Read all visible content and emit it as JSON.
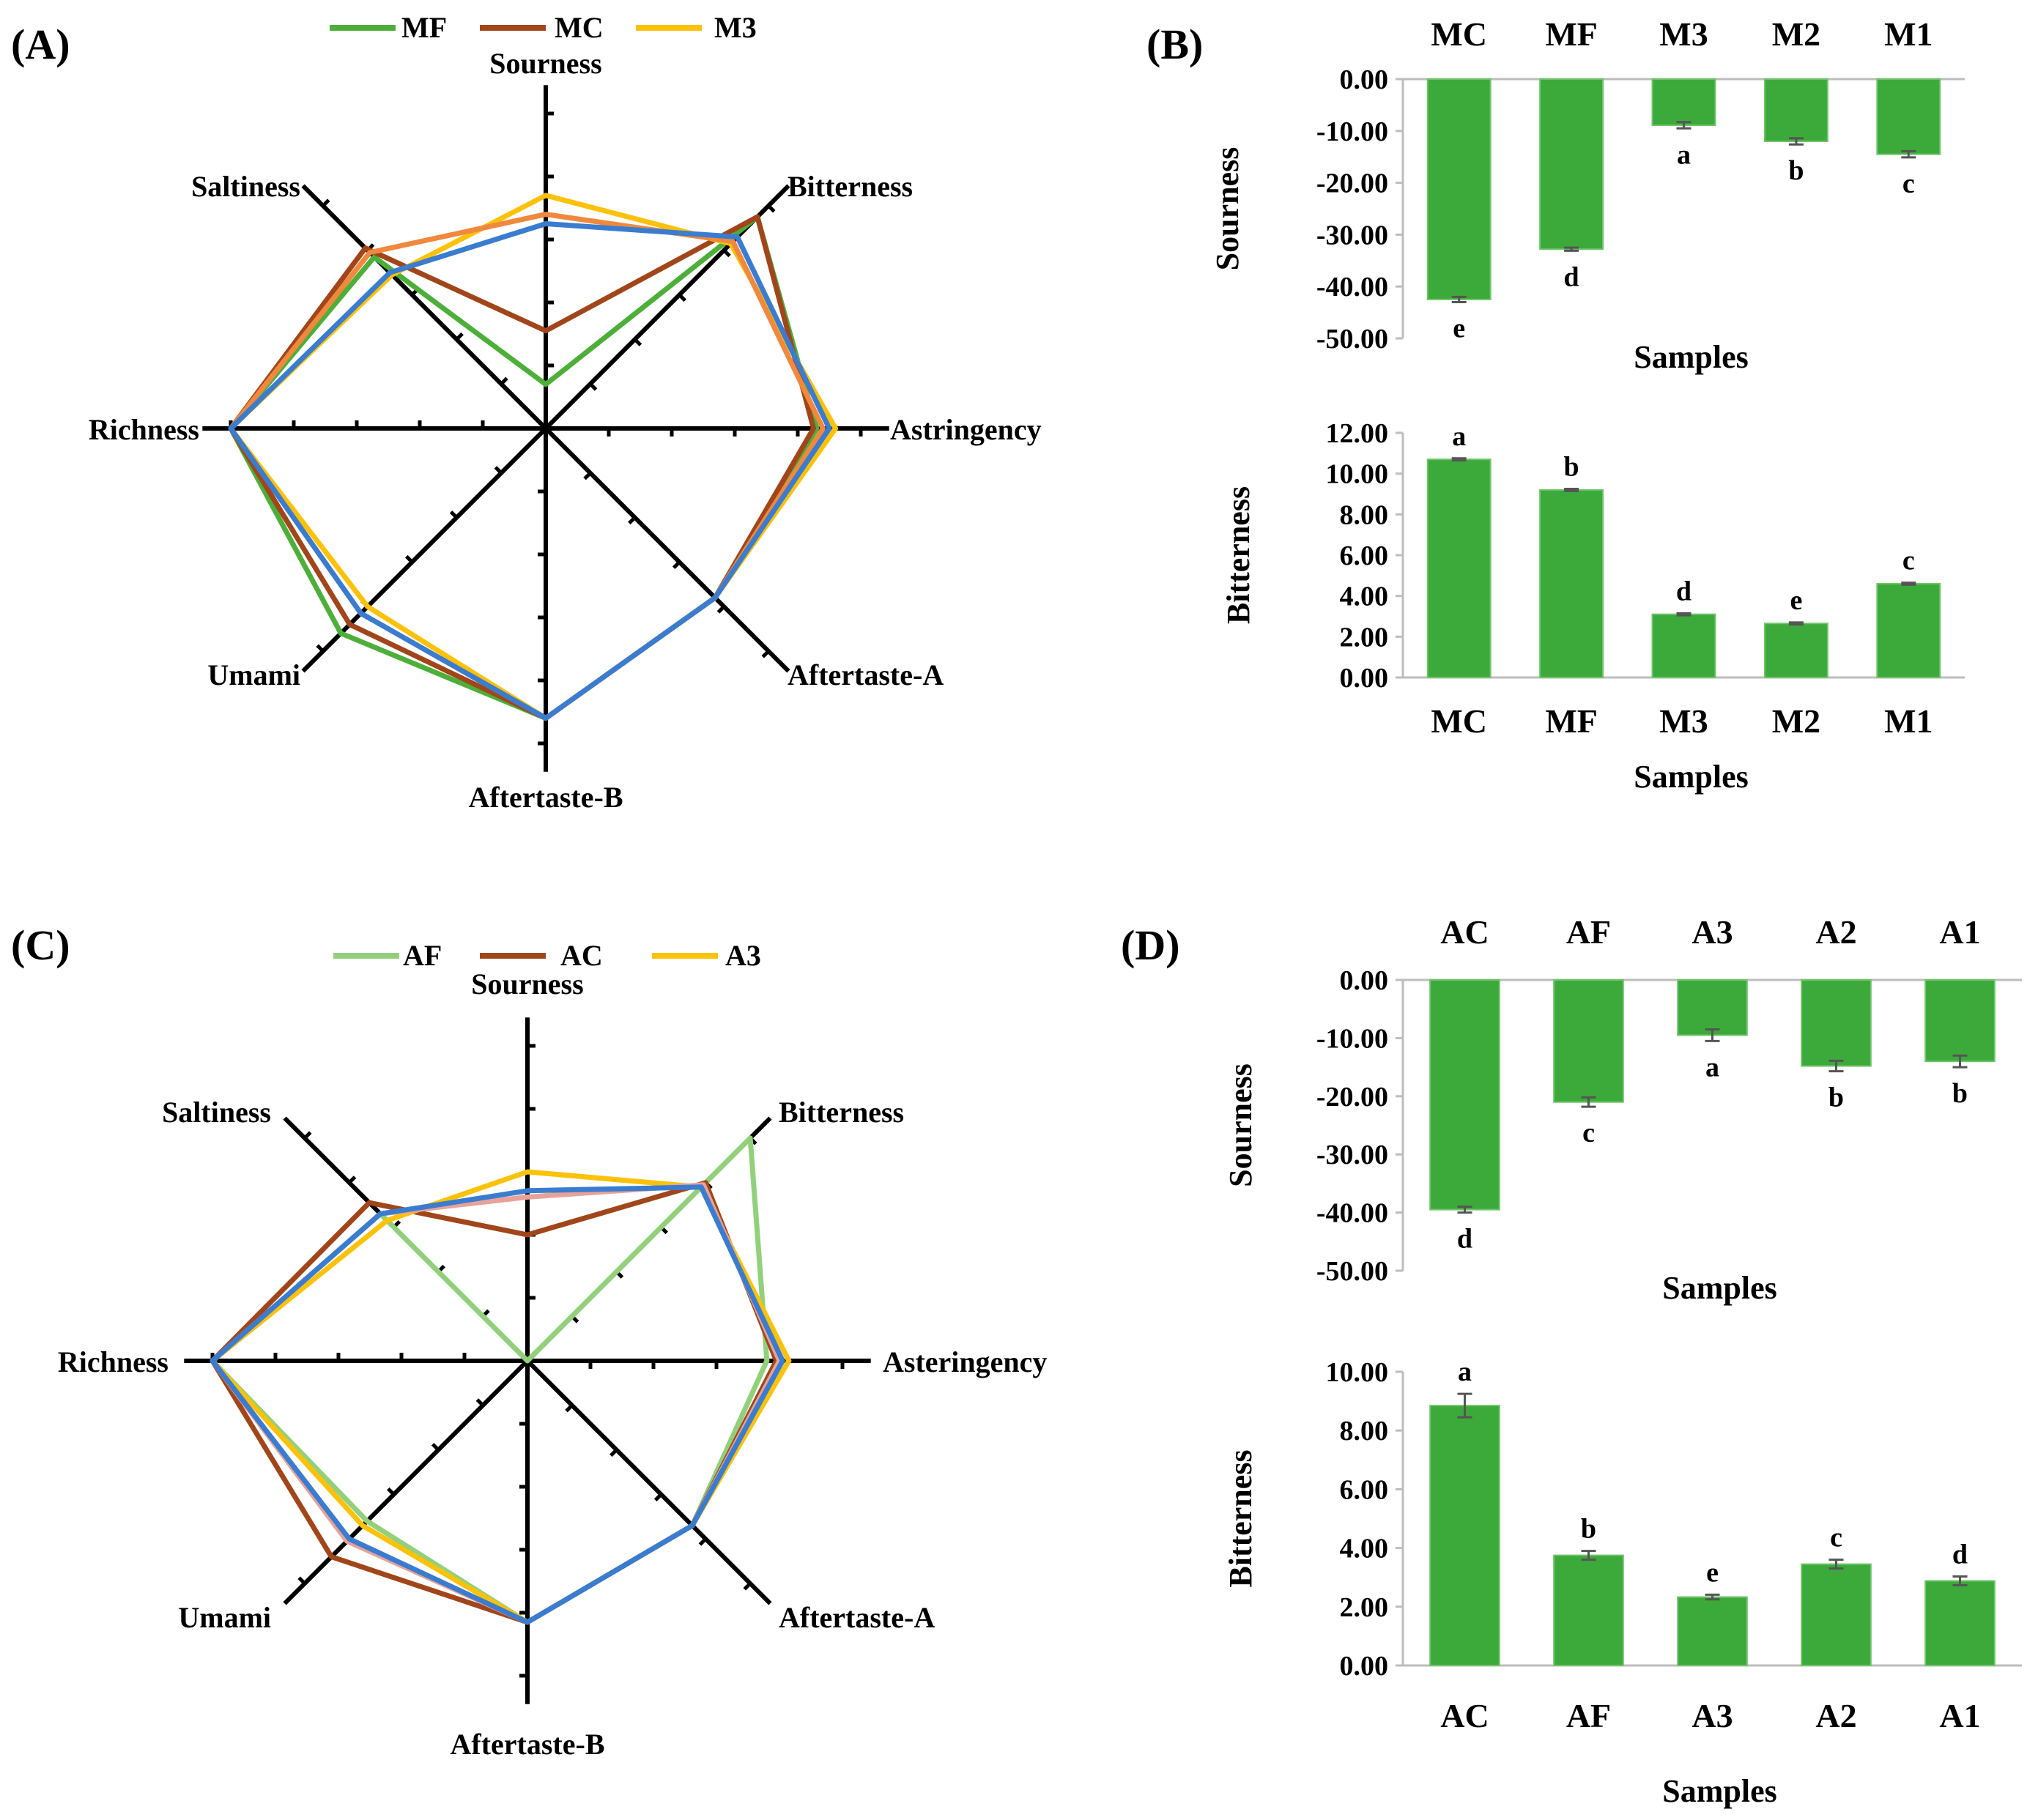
{
  "figure": {
    "panels": [
      "(A)",
      "(B)",
      "(C)",
      "(D)"
    ]
  },
  "colors": {
    "green_line": "#4daf3a",
    "brown_line": "#a0461a",
    "yellow_line": "#fcc20a",
    "orange_line": "#f0883e",
    "blue_line": "#3a7ccf",
    "light_green_line": "#92d07c",
    "pink_line": "#e7a29a",
    "bar_fill": "#3caa3a"
  },
  "chart_data": [
    {
      "panel": "(A)",
      "type": "radar",
      "axes": [
        "Sourness",
        "Bitterness",
        "Astringency",
        "Aftertaste-A",
        "Aftertaste-B",
        "Umami",
        "Richness",
        "Saltiness"
      ],
      "r_range": [
        0,
        1
      ],
      "legend": {
        "placement": "top",
        "entries": [
          {
            "name": "MF",
            "color": "#4daf3a"
          },
          {
            "name": "MC",
            "color": "#a0461a"
          },
          {
            "name": "M3",
            "color": "#fcc20a"
          }
        ]
      },
      "series": [
        {
          "name": "MF",
          "color": "#4daf3a",
          "values": [
            0.14,
            0.95,
            0.86,
            0.76,
            0.92,
            0.92,
            1.0,
            0.77
          ]
        },
        {
          "name": "MC",
          "color": "#a0461a",
          "values": [
            0.31,
            0.95,
            0.85,
            0.76,
            0.92,
            0.88,
            1.0,
            0.81
          ]
        },
        {
          "name": "M3",
          "color": "#fcc20a",
          "values": [
            0.74,
            0.83,
            0.92,
            0.76,
            0.92,
            0.8,
            1.0,
            0.69
          ]
        },
        {
          "color": "#f0883e",
          "values": [
            0.68,
            0.84,
            0.88,
            0.76,
            0.92,
            0.83,
            1.0,
            0.79
          ]
        },
        {
          "color": "#3a7ccf",
          "values": [
            0.65,
            0.86,
            0.9,
            0.76,
            0.92,
            0.83,
            1.0,
            0.7
          ]
        }
      ]
    },
    {
      "panel": "(B)",
      "type": "bar",
      "categories": [
        "MC",
        "MF",
        "M3",
        "M2",
        "M1"
      ],
      "values": [
        -42.5,
        -32.8,
        -8.9,
        -12.0,
        -14.5
      ],
      "errors": [
        0.5,
        0.3,
        0.6,
        0.6,
        0.6
      ],
      "significance": [
        "e",
        "d",
        "a",
        "b",
        "c"
      ],
      "ylabel": "Sourness",
      "xlabel": "Samples",
      "ylim": [
        -50,
        0
      ],
      "yticks": [
        "0.00",
        "-10.00",
        "-20.00",
        "-30.00",
        "-40.00",
        "-50.00"
      ],
      "category_axis": "top"
    },
    {
      "panel": "(B)",
      "type": "bar",
      "categories": [
        "MC",
        "MF",
        "M3",
        "M2",
        "M1"
      ],
      "values": [
        10.7,
        9.2,
        3.1,
        2.65,
        4.6
      ],
      "errors": [
        0.05,
        0.05,
        0.05,
        0.05,
        0.05
      ],
      "significance": [
        "a",
        "b",
        "d",
        "e",
        "c"
      ],
      "ylabel": "Bitterness",
      "xlabel": "Samples",
      "ylim": [
        0,
        12
      ],
      "yticks": [
        "0.00",
        "2.00",
        "4.00",
        "6.00",
        "8.00",
        "10.00",
        "12.00"
      ],
      "category_axis": "bottom"
    },
    {
      "panel": "(C)",
      "type": "radar",
      "axes": [
        "Sourness",
        "Bitterness",
        "Asteringency",
        "Aftertaste-A",
        "Aftertaste-B",
        "Umami",
        "Richness",
        "Saltiness"
      ],
      "r_range": [
        0,
        1
      ],
      "legend": {
        "placement": "top",
        "entries": [
          {
            "name": "AF",
            "color": "#92d07c"
          },
          {
            "name": "AC",
            "color": "#a0461a"
          },
          {
            "name": "A3",
            "color": "#fcc20a"
          }
        ]
      },
      "series": [
        {
          "name": "AF",
          "color": "#92d07c",
          "values": [
            0.0,
            1.0,
            0.76,
            0.74,
            0.83,
            0.72,
            1.0,
            0.66
          ]
        },
        {
          "name": "AC",
          "color": "#a0461a",
          "values": [
            0.4,
            0.8,
            0.79,
            0.74,
            0.83,
            0.88,
            1.0,
            0.71
          ]
        },
        {
          "name": "A3",
          "color": "#fcc20a",
          "values": [
            0.6,
            0.78,
            0.83,
            0.74,
            0.83,
            0.74,
            1.0,
            0.63
          ]
        },
        {
          "color": "#e7a29a",
          "values": [
            0.52,
            0.79,
            0.8,
            0.74,
            0.83,
            0.81,
            1.0,
            0.66
          ]
        },
        {
          "color": "#3a7ccf",
          "values": [
            0.54,
            0.78,
            0.81,
            0.74,
            0.83,
            0.8,
            1.0,
            0.66
          ]
        }
      ]
    },
    {
      "panel": "(D)",
      "type": "bar",
      "categories": [
        "AC",
        "AF",
        "A3",
        "A2",
        "A1"
      ],
      "values": [
        -39.5,
        -21.0,
        -9.5,
        -14.8,
        -14.0
      ],
      "errors": [
        0.5,
        0.8,
        1.0,
        0.9,
        1.0
      ],
      "significance": [
        "d",
        "c",
        "a",
        "b",
        "b"
      ],
      "ylabel": "Sourness",
      "xlabel": "Samples",
      "ylim": [
        -50,
        0
      ],
      "yticks": [
        "0.00",
        "-10.00",
        "-20.00",
        "-30.00",
        "-40.00",
        "-50.00"
      ],
      "category_axis": "top"
    },
    {
      "panel": "(D)",
      "type": "bar",
      "categories": [
        "AC",
        "AF",
        "A3",
        "A2",
        "A1"
      ],
      "values": [
        8.85,
        3.75,
        2.33,
        3.45,
        2.88
      ],
      "errors": [
        0.4,
        0.15,
        0.08,
        0.15,
        0.15
      ],
      "significance": [
        "a",
        "b",
        "e",
        "c",
        "d"
      ],
      "ylabel": "Bitterness",
      "xlabel": "Samples",
      "ylim": [
        0,
        10
      ],
      "yticks": [
        "0.00",
        "2.00",
        "4.00",
        "6.00",
        "8.00",
        "10.00"
      ],
      "category_axis": "bottom"
    }
  ]
}
